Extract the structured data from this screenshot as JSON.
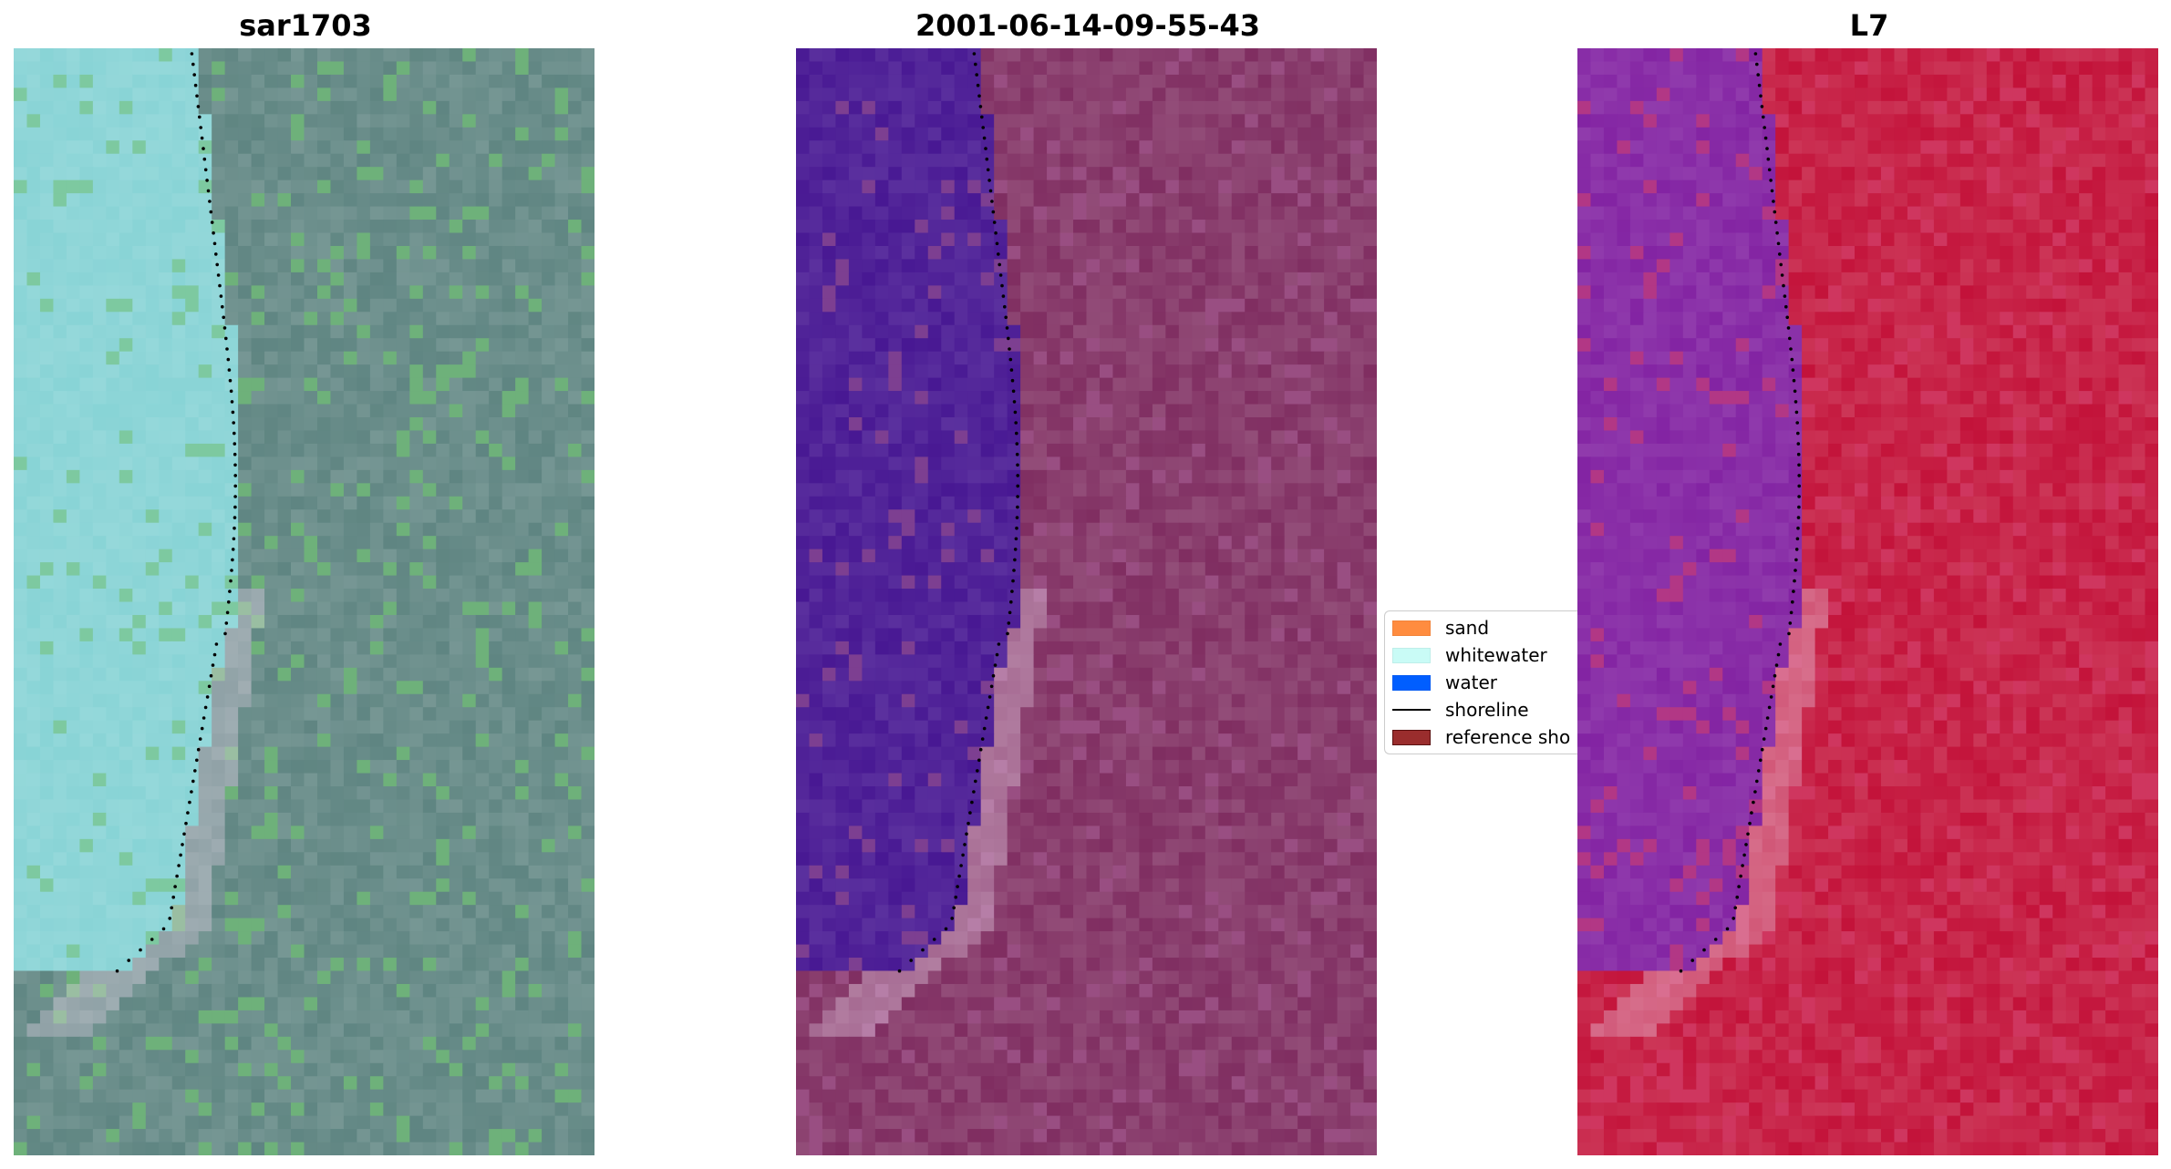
{
  "panels": [
    {
      "title": "sar1703",
      "image": "rgb-composite",
      "base": "#6c8f8c",
      "water": "#8fd6d8",
      "accent": "#6fbf72"
    },
    {
      "title": "2001-06-14-09-55-43",
      "image": "classified-overlay",
      "base": "#8a3f6e",
      "water": "#522599",
      "accent": "#a0558a"
    },
    {
      "title": "L7",
      "image": "false-color",
      "base": "#c8264a",
      "water": "#8a30a8",
      "accent": "#d23d68"
    }
  ],
  "legend": {
    "items": [
      {
        "label": "sand",
        "kind": "patch",
        "color": "#ff8c3f"
      },
      {
        "label": "whitewater",
        "kind": "patch",
        "color": "#c9fbf6"
      },
      {
        "label": "water",
        "kind": "patch",
        "color": "#005eff"
      },
      {
        "label": "shoreline",
        "kind": "line",
        "color": "#000000"
      },
      {
        "label": "reference sho",
        "kind": "patch",
        "color": "#9a2d2d"
      }
    ]
  }
}
